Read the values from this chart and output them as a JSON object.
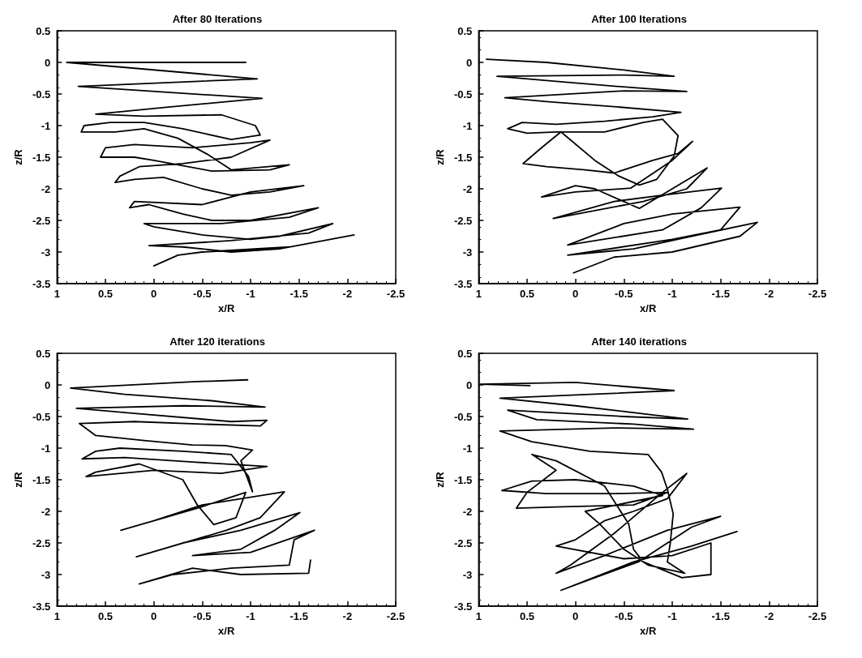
{
  "chart_data": [
    {
      "type": "line",
      "title": "After 80 Iterations",
      "xlabel": "x/R",
      "ylabel": "z/R",
      "xlim": [
        1,
        -2.5
      ],
      "ylim": [
        -3.5,
        0.5
      ],
      "xticks": [
        1,
        0.5,
        0,
        -0.5,
        -1,
        -1.5,
        -2,
        -2.5
      ],
      "yticks": [
        -3.5,
        -3,
        -2.5,
        -2,
        -1.5,
        -1,
        -0.5,
        0,
        0.5
      ],
      "grid": false,
      "series": [
        {
          "color": "#000000",
          "x": [
            -0.95,
            0.9,
            -1.07,
            0.78,
            -1.12,
            -0.13,
            0.6,
            0.1,
            -0.7,
            -1.05,
            -1.1,
            -0.8,
            -0.3,
            0.1,
            0.45,
            0.72,
            0.75,
            0.4,
            0.1,
            -0.25,
            -0.55,
            -0.8,
            -1.4,
            -1.2,
            -0.6,
            0.0,
            0.2,
            0.55,
            0.5,
            0.2,
            -0.4,
            -1.0,
            -1.2,
            -0.8,
            -0.3,
            0.15,
            0.35,
            0.4,
            0.2,
            -0.1,
            -0.5,
            -0.8,
            -1.2,
            -1.55,
            -1.0,
            -0.5,
            0.2,
            0.25,
            0.05,
            -0.3,
            -0.6,
            -1.0,
            -1.7,
            -1.4,
            -0.7,
            0.1,
            0.0,
            -0.5,
            -1.0,
            -1.3,
            -1.85,
            -1.6,
            -0.8,
            0.05,
            -0.3,
            -0.8,
            -1.3,
            -2.07,
            -1.4,
            -0.5,
            -0.25,
            0.0
          ],
          "values": [
            0,
            0,
            -0.26,
            -0.38,
            -0.57,
            -0.71,
            -0.82,
            -0.85,
            -0.83,
            -1.0,
            -1.15,
            -1.22,
            -1.05,
            -0.95,
            -0.95,
            -1.0,
            -1.1,
            -1.1,
            -1.05,
            -1.2,
            -1.45,
            -1.7,
            -1.62,
            -1.7,
            -1.72,
            -1.55,
            -1.5,
            -1.5,
            -1.35,
            -1.3,
            -1.35,
            -1.27,
            -1.23,
            -1.5,
            -1.6,
            -1.65,
            -1.8,
            -1.9,
            -1.85,
            -1.82,
            -2.0,
            -2.1,
            -2.05,
            -1.95,
            -2.05,
            -2.25,
            -2.2,
            -2.3,
            -2.25,
            -2.4,
            -2.5,
            -2.5,
            -2.3,
            -2.45,
            -2.55,
            -2.55,
            -2.6,
            -2.73,
            -2.8,
            -2.75,
            -2.55,
            -2.7,
            -2.82,
            -2.9,
            -2.92,
            -3.0,
            -2.95,
            -2.73,
            -2.92,
            -3.0,
            -3.05,
            -3.22
          ]
        }
      ]
    },
    {
      "type": "line",
      "title": "After 100 Iterations",
      "xlabel": "x/R",
      "ylabel": "z/R",
      "xlim": [
        1,
        -2.5
      ],
      "ylim": [
        -3.5,
        0.5
      ],
      "xticks": [
        1,
        0.5,
        0,
        -0.5,
        -1,
        -1.5,
        -2,
        -2.5
      ],
      "yticks": [
        -3.5,
        -3,
        -2.5,
        -2,
        -1.5,
        -1,
        -0.5,
        0,
        0.5
      ],
      "grid": false,
      "series": [
        {
          "color": "#000000",
          "x": [
            0.92,
            0.3,
            -0.5,
            -1.02,
            -0.5,
            0.81,
            0.2,
            -0.6,
            -1.15,
            -0.5,
            0.73,
            0.3,
            -0.4,
            -1.09,
            -0.8,
            -0.3,
            0.2,
            0.55,
            0.7,
            0.5,
            0.2,
            -0.3,
            -0.7,
            -0.9,
            -1.06,
            -1.02,
            -0.84,
            -0.66,
            -0.45,
            -0.2,
            0.15,
            0.35,
            0.54,
            0.3,
            -0.1,
            -0.4,
            -0.8,
            -1.06,
            -1.21,
            -1.0,
            -0.57,
            0.0,
            0.35,
            0.0,
            -0.2,
            -0.66,
            -1.0,
            -1.36,
            -1.15,
            -0.7,
            0.23,
            -0.4,
            -0.9,
            -1.51,
            -1.3,
            -0.9,
            0.08,
            -0.5,
            -1.0,
            -1.7,
            -1.5,
            -1.0,
            0.08,
            -0.6,
            -1.2,
            -1.88,
            -1.7,
            -1.0,
            -0.4,
            0.02
          ],
          "values": [
            0.05,
            0.0,
            -0.12,
            -0.22,
            -0.2,
            -0.22,
            -0.3,
            -0.4,
            -0.46,
            -0.45,
            -0.56,
            -0.62,
            -0.7,
            -0.79,
            -0.86,
            -0.93,
            -0.98,
            -0.95,
            -1.05,
            -1.12,
            -1.1,
            -1.1,
            -0.95,
            -0.9,
            -1.16,
            -1.48,
            -1.85,
            -1.94,
            -1.8,
            -1.55,
            -1.1,
            -1.35,
            -1.6,
            -1.65,
            -1.7,
            -1.75,
            -1.55,
            -1.44,
            -1.25,
            -1.55,
            -1.99,
            -2.05,
            -2.13,
            -1.95,
            -2.0,
            -2.31,
            -2.0,
            -1.67,
            -2.0,
            -2.2,
            -2.47,
            -2.2,
            -2.1,
            -1.99,
            -2.3,
            -2.65,
            -2.89,
            -2.55,
            -2.4,
            -2.29,
            -2.65,
            -2.8,
            -3.05,
            -2.95,
            -2.75,
            -2.53,
            -2.75,
            -3.0,
            -3.08,
            -3.33
          ]
        }
      ]
    },
    {
      "type": "line",
      "title": "After 120 iterations",
      "xlabel": "x/R",
      "ylabel": "z/R",
      "xlim": [
        1,
        -2.5
      ],
      "ylim": [
        -3.5,
        0.5
      ],
      "xticks": [
        1,
        0.5,
        0,
        -0.5,
        -1,
        -1.5,
        -2,
        -2.5
      ],
      "yticks": [
        -3.5,
        -3,
        -2.5,
        -2,
        -1.5,
        -1,
        -0.5,
        0,
        0.5
      ],
      "grid": false,
      "series": [
        {
          "color": "#000000",
          "x": [
            -0.97,
            -0.4,
            0.86,
            0.3,
            -0.6,
            -1.15,
            -0.3,
            0.8,
            0.2,
            -0.8,
            -1.17,
            -1.1,
            -0.5,
            0.2,
            0.77,
            0.6,
            0.1,
            -0.4,
            -0.74,
            -1.02,
            -0.9,
            -1.02,
            -0.98,
            -0.8,
            -0.3,
            0.35,
            0.6,
            0.74,
            0.3,
            -0.4,
            -1.17,
            -0.7,
            0.0,
            0.7,
            0.6,
            0.15,
            -0.3,
            -0.45,
            -0.62,
            -0.85,
            -0.95,
            -0.75,
            -0.45,
            0.34,
            0.0,
            -0.5,
            -1.35,
            -1.1,
            -0.75,
            0.18,
            -0.3,
            -0.9,
            -1.51,
            -1.25,
            -0.9,
            -0.4,
            -1.0,
            -1.66,
            -1.45,
            -1.4,
            -0.8,
            -0.2,
            0.15,
            -0.4,
            -0.9,
            -1.6,
            -1.62
          ],
          "values": [
            0.08,
            0.05,
            -0.05,
            -0.15,
            -0.25,
            -0.35,
            -0.33,
            -0.37,
            -0.45,
            -0.58,
            -0.56,
            -0.65,
            -0.62,
            -0.58,
            -0.61,
            -0.8,
            -0.88,
            -0.95,
            -0.96,
            -1.03,
            -1.2,
            -1.69,
            -1.45,
            -1.1,
            -1.05,
            -1.0,
            -1.05,
            -1.17,
            -1.15,
            -1.22,
            -1.29,
            -1.4,
            -1.35,
            -1.45,
            -1.38,
            -1.25,
            -1.5,
            -1.9,
            -2.21,
            -2.1,
            -1.7,
            -1.8,
            -1.95,
            -2.3,
            -2.15,
            -1.9,
            -1.69,
            -2.1,
            -2.3,
            -2.72,
            -2.5,
            -2.3,
            -2.02,
            -2.3,
            -2.6,
            -2.7,
            -2.65,
            -2.3,
            -2.45,
            -2.85,
            -2.9,
            -3.0,
            -3.15,
            -2.9,
            -3.0,
            -2.98,
            -2.77
          ]
        }
      ]
    },
    {
      "type": "line",
      "title": "After 140 iterations",
      "xlabel": "x/R",
      "ylabel": "z/R",
      "xlim": [
        1,
        -2.5
      ],
      "ylim": [
        -3.5,
        0.5
      ],
      "xticks": [
        1,
        0.5,
        0,
        -0.5,
        -1,
        -1.5,
        -2,
        -2.5
      ],
      "yticks": [
        -3.5,
        -3,
        -2.5,
        -2,
        -1.5,
        -1,
        -0.5,
        0,
        0.5
      ],
      "grid": false,
      "series": [
        {
          "color": "#000000",
          "x": [
            0.47,
            0.99,
            0.0,
            -1.02,
            -0.3,
            0.78,
            0.0,
            -1.16,
            -0.5,
            0.7,
            0.4,
            -0.6,
            -1.22,
            -0.4,
            0.78,
            0.45,
            -0.15,
            -0.75,
            -0.89,
            -0.95,
            -1.01,
            -0.98,
            -0.95,
            -1.13,
            -0.75,
            -0.5,
            -0.25,
            -0.1,
            -0.9,
            -0.6,
            0.0,
            0.45,
            0.76,
            0.3,
            -0.4,
            -0.95,
            -0.6,
            0.2,
            0.61,
            0.5,
            0.2,
            0.45,
            0.2,
            -0.3,
            -0.55,
            -0.6,
            -0.7,
            -1.1,
            -1.4,
            -1.4,
            -1.0,
            -0.5,
            0.2,
            0.0,
            -0.3,
            -0.6,
            -0.95,
            -1.15,
            -0.9,
            -0.4,
            0.05,
            0.2,
            -0.3,
            -0.95,
            -1.5,
            -1.2,
            -0.65,
            -0.2,
            0.15,
            -0.6,
            -1.2,
            -1.67
          ],
          "values": [
            -0.01,
            0.01,
            0.04,
            -0.09,
            -0.14,
            -0.21,
            -0.33,
            -0.54,
            -0.5,
            -0.4,
            -0.55,
            -0.62,
            -0.7,
            -0.68,
            -0.73,
            -0.9,
            -1.05,
            -1.1,
            -1.38,
            -1.65,
            -2.04,
            -2.5,
            -2.8,
            -2.98,
            -2.85,
            -2.6,
            -2.2,
            -2.0,
            -1.75,
            -1.6,
            -1.5,
            -1.52,
            -1.67,
            -1.72,
            -1.72,
            -1.7,
            -1.9,
            -1.93,
            -1.95,
            -1.7,
            -1.35,
            -1.1,
            -1.2,
            -1.6,
            -2.2,
            -2.6,
            -2.8,
            -3.05,
            -3.0,
            -2.5,
            -2.7,
            -2.75,
            -2.55,
            -2.45,
            -2.15,
            -2.0,
            -1.8,
            -1.4,
            -1.7,
            -2.35,
            -2.85,
            -2.98,
            -2.7,
            -2.3,
            -2.08,
            -2.25,
            -2.8,
            -3.05,
            -3.25,
            -2.8,
            -2.55,
            -2.32
          ]
        }
      ]
    }
  ]
}
